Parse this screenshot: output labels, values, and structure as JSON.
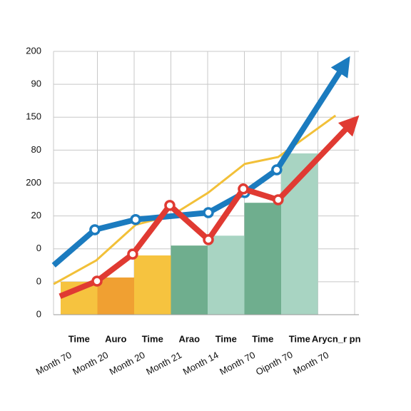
{
  "chart_data": {
    "type": "bar",
    "categories": [
      "Time",
      "Auro",
      "Time",
      "Arao",
      "Time",
      "Time",
      "Time",
      "Arycn_r pn"
    ],
    "sublabels": [
      "Month 70",
      "Month 20",
      "Month 20",
      "Month 21",
      "Month 14",
      "Month 70",
      "Oipnth 70",
      "Month 70"
    ],
    "values": [
      1.0,
      1.13,
      1.8,
      2.1,
      2.4,
      3.4,
      4.9,
      null
    ],
    "colors": [
      "#f6c33f",
      "#f0a032",
      "#f6c33f",
      "#6fae8e",
      "#a8d4c2",
      "#6fae8e",
      "#a8d4c2",
      "#a8d4c2"
    ],
    "ylim": [
      0,
      8
    ],
    "yticks": [
      {
        "value": 0,
        "label": "0"
      },
      {
        "value": 1,
        "label": "0"
      },
      {
        "value": 2,
        "label": "0"
      },
      {
        "value": 3,
        "label": "20"
      },
      {
        "value": 4,
        "label": "200"
      },
      {
        "value": 5,
        "label": "80"
      },
      {
        "value": 6,
        "label": "150"
      },
      {
        "value": 7,
        "label": "90"
      },
      {
        "value": 8,
        "label": "200"
      }
    ],
    "grid": true,
    "lines": [
      {
        "color": "#f2c038",
        "width": 3,
        "x": [
          -0.69,
          0.47,
          1.54,
          2.53,
          3.52,
          4.51,
          5.42,
          6.98
        ],
        "values": [
          0.93,
          1.65,
          2.73,
          3.02,
          3.71,
          4.58,
          4.79,
          6.05
        ]
      },
      {
        "color": "#1b7bbf",
        "width": 8,
        "x": [
          -0.69,
          0.43,
          1.54,
          3.52,
          4.51,
          5.38,
          7.17
        ],
        "values": [
          1.5,
          2.58,
          2.89,
          3.1,
          3.71,
          4.4,
          7.5
        ]
      },
      {
        "color": "#e03a32",
        "width": 8,
        "x": [
          -0.52,
          0.49,
          1.46,
          2.47,
          3.52,
          4.47,
          5.42,
          7.36
        ],
        "values": [
          0.56,
          1.02,
          1.84,
          3.32,
          2.28,
          3.82,
          3.49,
          5.75
        ]
      }
    ]
  }
}
